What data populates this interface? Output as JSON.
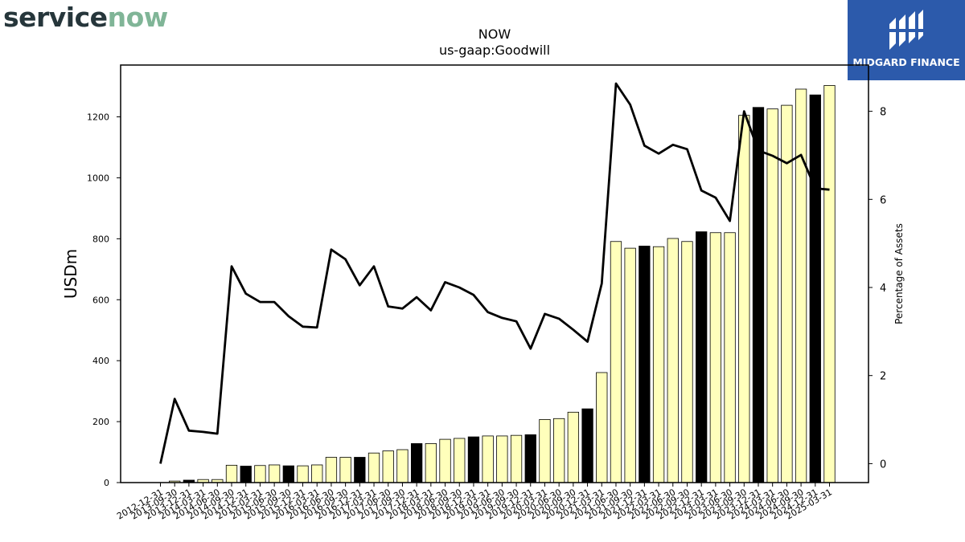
{
  "header": {
    "left_logo_text_a": "service",
    "left_logo_text_b": "now",
    "left_logo_colors": {
      "text": "#26363b",
      "accent": "#80b597"
    },
    "right_logo_text": "MIDGARD FINANCE",
    "right_logo_bg": "#2c5aab"
  },
  "chart_data": {
    "type": "bar",
    "title": "NOW",
    "subtitle": "us-gaap:Goodwill",
    "ylabel": "USDm",
    "y2label": "Percentage of Assets",
    "ylim": [
      0,
      1370
    ],
    "y2lim": [
      -0.43,
      9.05
    ],
    "yticks": [
      0,
      200,
      400,
      600,
      800,
      1000,
      1200
    ],
    "y2ticks": [
      0,
      2,
      4,
      6,
      8
    ],
    "colors": {
      "bar_regular": "#ffffbb",
      "bar_highlight": "#000000",
      "line": "#000000"
    },
    "x": [
      "2012-12-31",
      "2013-09-30",
      "2013-12-31",
      "2014-03-31",
      "2014-06-30",
      "2014-09-30",
      "2014-12-31",
      "2015-03-31",
      "2015-06-30",
      "2015-09-30",
      "2015-12-31",
      "2016-03-31",
      "2016-06-30",
      "2016-09-30",
      "2016-12-31",
      "2017-03-31",
      "2017-06-30",
      "2017-09-30",
      "2017-12-31",
      "2018-03-31",
      "2018-06-30",
      "2018-09-30",
      "2018-12-31",
      "2019-03-31",
      "2019-06-30",
      "2019-09-30",
      "2019-12-31",
      "2020-03-31",
      "2020-06-30",
      "2020-09-30",
      "2020-12-31",
      "2021-03-31",
      "2021-06-30",
      "2021-09-30",
      "2021-12-31",
      "2022-03-31",
      "2022-06-30",
      "2022-09-30",
      "2022-12-31",
      "2023-03-31",
      "2023-06-30",
      "2023-09-30",
      "2023-12-31",
      "2024-03-31",
      "2024-06-30",
      "2024-09-30",
      "2024-12-31",
      "2025-03-31"
    ],
    "series": [
      {
        "kind": "bar",
        "values": [
          0,
          5,
          8,
          10,
          10,
          57,
          54,
          56,
          58,
          55,
          55,
          58,
          83,
          83,
          83,
          97,
          104,
          108,
          128,
          128,
          142,
          145,
          150,
          153,
          153,
          155,
          157,
          207,
          210,
          231,
          242,
          361,
          791,
          769,
          776,
          774,
          801,
          791,
          823,
          820,
          820,
          1205,
          1231,
          1226,
          1238,
          1291,
          1272,
          1303
        ],
        "highlight": [
          false,
          false,
          true,
          false,
          false,
          false,
          true,
          false,
          false,
          true,
          false,
          false,
          false,
          false,
          true,
          false,
          false,
          false,
          true,
          false,
          false,
          false,
          true,
          false,
          false,
          false,
          true,
          false,
          false,
          false,
          true,
          false,
          false,
          false,
          true,
          false,
          false,
          false,
          true,
          false,
          false,
          false,
          true,
          false,
          false,
          false,
          true,
          false
        ]
      },
      {
        "kind": "line",
        "axis": "right",
        "values": [
          0,
          1.47,
          0.75,
          0.72,
          0.68,
          4.48,
          3.86,
          3.67,
          3.67,
          3.35,
          3.11,
          3.09,
          4.86,
          4.64,
          4.05,
          4.48,
          3.57,
          3.52,
          3.78,
          3.48,
          4.12,
          4.0,
          3.83,
          3.44,
          3.31,
          3.23,
          2.61,
          3.4,
          3.29,
          3.04,
          2.77,
          4.09,
          8.63,
          8.15,
          7.22,
          7.04,
          7.24,
          7.14,
          6.2,
          6.04,
          5.51,
          8.0,
          7.11,
          6.99,
          6.82,
          7.01,
          6.25,
          6.22
        ]
      }
    ],
    "grid": false,
    "legend": "none"
  }
}
